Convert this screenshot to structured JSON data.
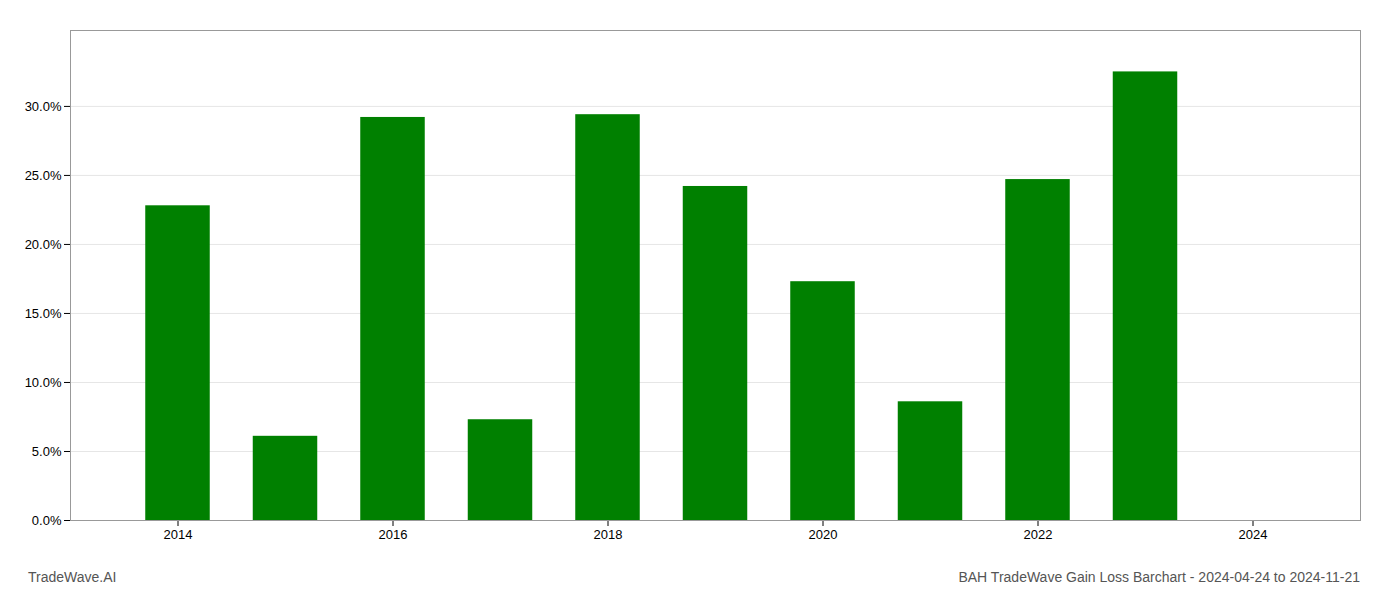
{
  "chart_data": {
    "type": "bar",
    "title": "BAH TradeWave Gain Loss Barchart - 2024-04-24 to 2024-11-21",
    "annotations": [
      "TradeWave.AI"
    ],
    "x": [
      2014,
      2015,
      2016,
      2017,
      2018,
      2019,
      2020,
      2021,
      2022,
      2023
    ],
    "values": [
      0.228,
      0.061,
      0.292,
      0.073,
      0.294,
      0.242,
      0.173,
      0.086,
      0.247,
      0.325
    ],
    "color": "#008000",
    "xlim": [
      2013.0,
      2025.0
    ],
    "xticks": [
      2014,
      2016,
      2018,
      2020,
      2022,
      2024
    ],
    "ylim": [
      0.0,
      0.355
    ],
    "yticks": [
      {
        "value": 0.0,
        "label": "0.0%"
      },
      {
        "value": 0.05,
        "label": "5.0%"
      },
      {
        "value": 0.1,
        "label": "10.0%"
      },
      {
        "value": 0.15,
        "label": "15.0%"
      },
      {
        "value": 0.2,
        "label": "20.0%"
      },
      {
        "value": 0.25,
        "label": "25.0%"
      },
      {
        "value": 0.3,
        "label": "30.0%"
      }
    ],
    "grid": true
  }
}
